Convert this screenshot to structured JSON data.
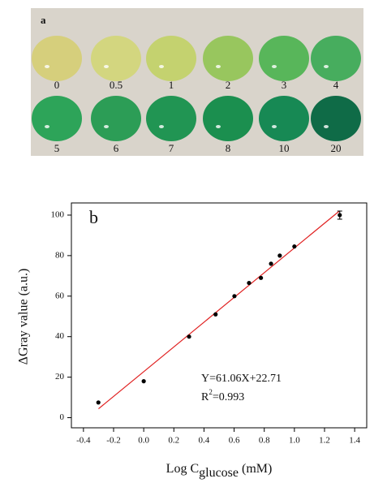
{
  "panel_a": {
    "label": "a",
    "droplets": [
      {
        "label": "0",
        "color": "#d6cf7c"
      },
      {
        "label": "0.5",
        "color": "#d3d67f"
      },
      {
        "label": "1",
        "color": "#c4d26f"
      },
      {
        "label": "2",
        "color": "#98c65e"
      },
      {
        "label": "3",
        "color": "#58b65a"
      },
      {
        "label": "4",
        "color": "#47ad5e"
      },
      {
        "label": "5",
        "color": "#2da459"
      },
      {
        "label": "6",
        "color": "#2c9d56"
      },
      {
        "label": "7",
        "color": "#219553"
      },
      {
        "label": "8",
        "color": "#1b8f4f"
      },
      {
        "label": "10",
        "color": "#178954"
      },
      {
        "label": "20",
        "color": "#0f6b47"
      }
    ]
  },
  "chart_data": {
    "type": "scatter",
    "panel_label": "b",
    "x_label": "Log C",
    "x_label_sub": "glucose",
    "x_label_unit": " (mM)",
    "y_label": "ΔGray value (a.u.)",
    "equation": "Y=61.06X+22.71",
    "r2_label": "R",
    "r2_sup": "2",
    "r2_value": "=0.993",
    "x": [
      -0.301,
      0,
      0.301,
      0.477,
      0.602,
      0.699,
      0.778,
      0.845,
      0.903,
      1.0,
      1.301
    ],
    "values": [
      7.5,
      18,
      40,
      51,
      60,
      66.5,
      69,
      76,
      80,
      84.5,
      100
    ],
    "errors": [
      null,
      null,
      null,
      null,
      null,
      null,
      null,
      null,
      null,
      null,
      2
    ],
    "color": "#000000",
    "fit_x": [
      -0.3,
      1.3
    ],
    "fit_y": [
      4.39,
      102.09
    ],
    "fit_color": "#e02020",
    "xlim": [
      -0.48,
      1.48
    ],
    "ylim": [
      -5,
      106
    ],
    "xticks": [
      -0.4,
      -0.2,
      {
        "value": 0,
        "label": "0.0"
      },
      0.2,
      0.4,
      0.6,
      0.8,
      {
        "value": 1,
        "label": "1.0"
      },
      1.2,
      1.4
    ],
    "yticks": [
      0,
      20,
      40,
      60,
      80,
      100
    ]
  }
}
